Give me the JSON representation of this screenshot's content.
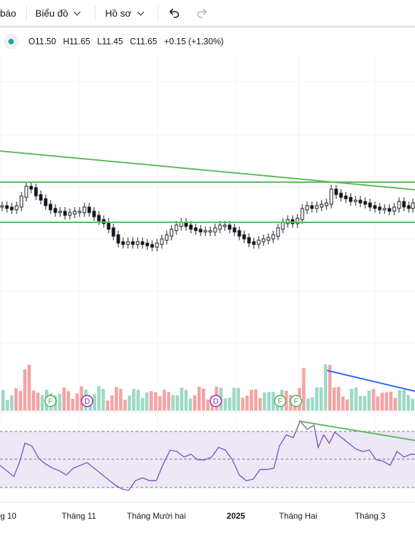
{
  "toolbar": {
    "partial_label": "báo",
    "chart_menu": "Biểu đồ",
    "profile_menu": "Hồ sơ",
    "undo_icon": "undo-icon",
    "redo_icon": "redo-icon"
  },
  "legend": {
    "open": "O11.50",
    "high": "H11.65",
    "low": "L11.45",
    "close": "C11.65",
    "change": "+0.15 (+1.30%)",
    "status_color": "#26a69a"
  },
  "x_axis": {
    "labels": [
      "g 10",
      "Tháng 11",
      "Tháng Mười hai",
      "2025",
      "Tháng Hai",
      "Tháng 3"
    ],
    "bold": [
      false,
      false,
      false,
      true,
      false,
      false
    ]
  },
  "event_markers": [
    {
      "letter": "F",
      "color": "#4caf50"
    },
    {
      "letter": "D",
      "color": "#9c27b0"
    },
    {
      "letter": "D",
      "color": "#9c27b0"
    },
    {
      "letter": "F",
      "color": "#4caf50"
    },
    {
      "letter": "F",
      "color": "#4caf50"
    }
  ],
  "colors": {
    "up": "#26a69a",
    "down": "#ef5350",
    "volume_up": "#9fd8c7",
    "volume_down": "#f4a3a3",
    "trendline": "#5cb85c",
    "volume_trendline": "#2962ff",
    "rsi_line": "#7e57c2",
    "rsi_band": "#ede7f6"
  }
}
